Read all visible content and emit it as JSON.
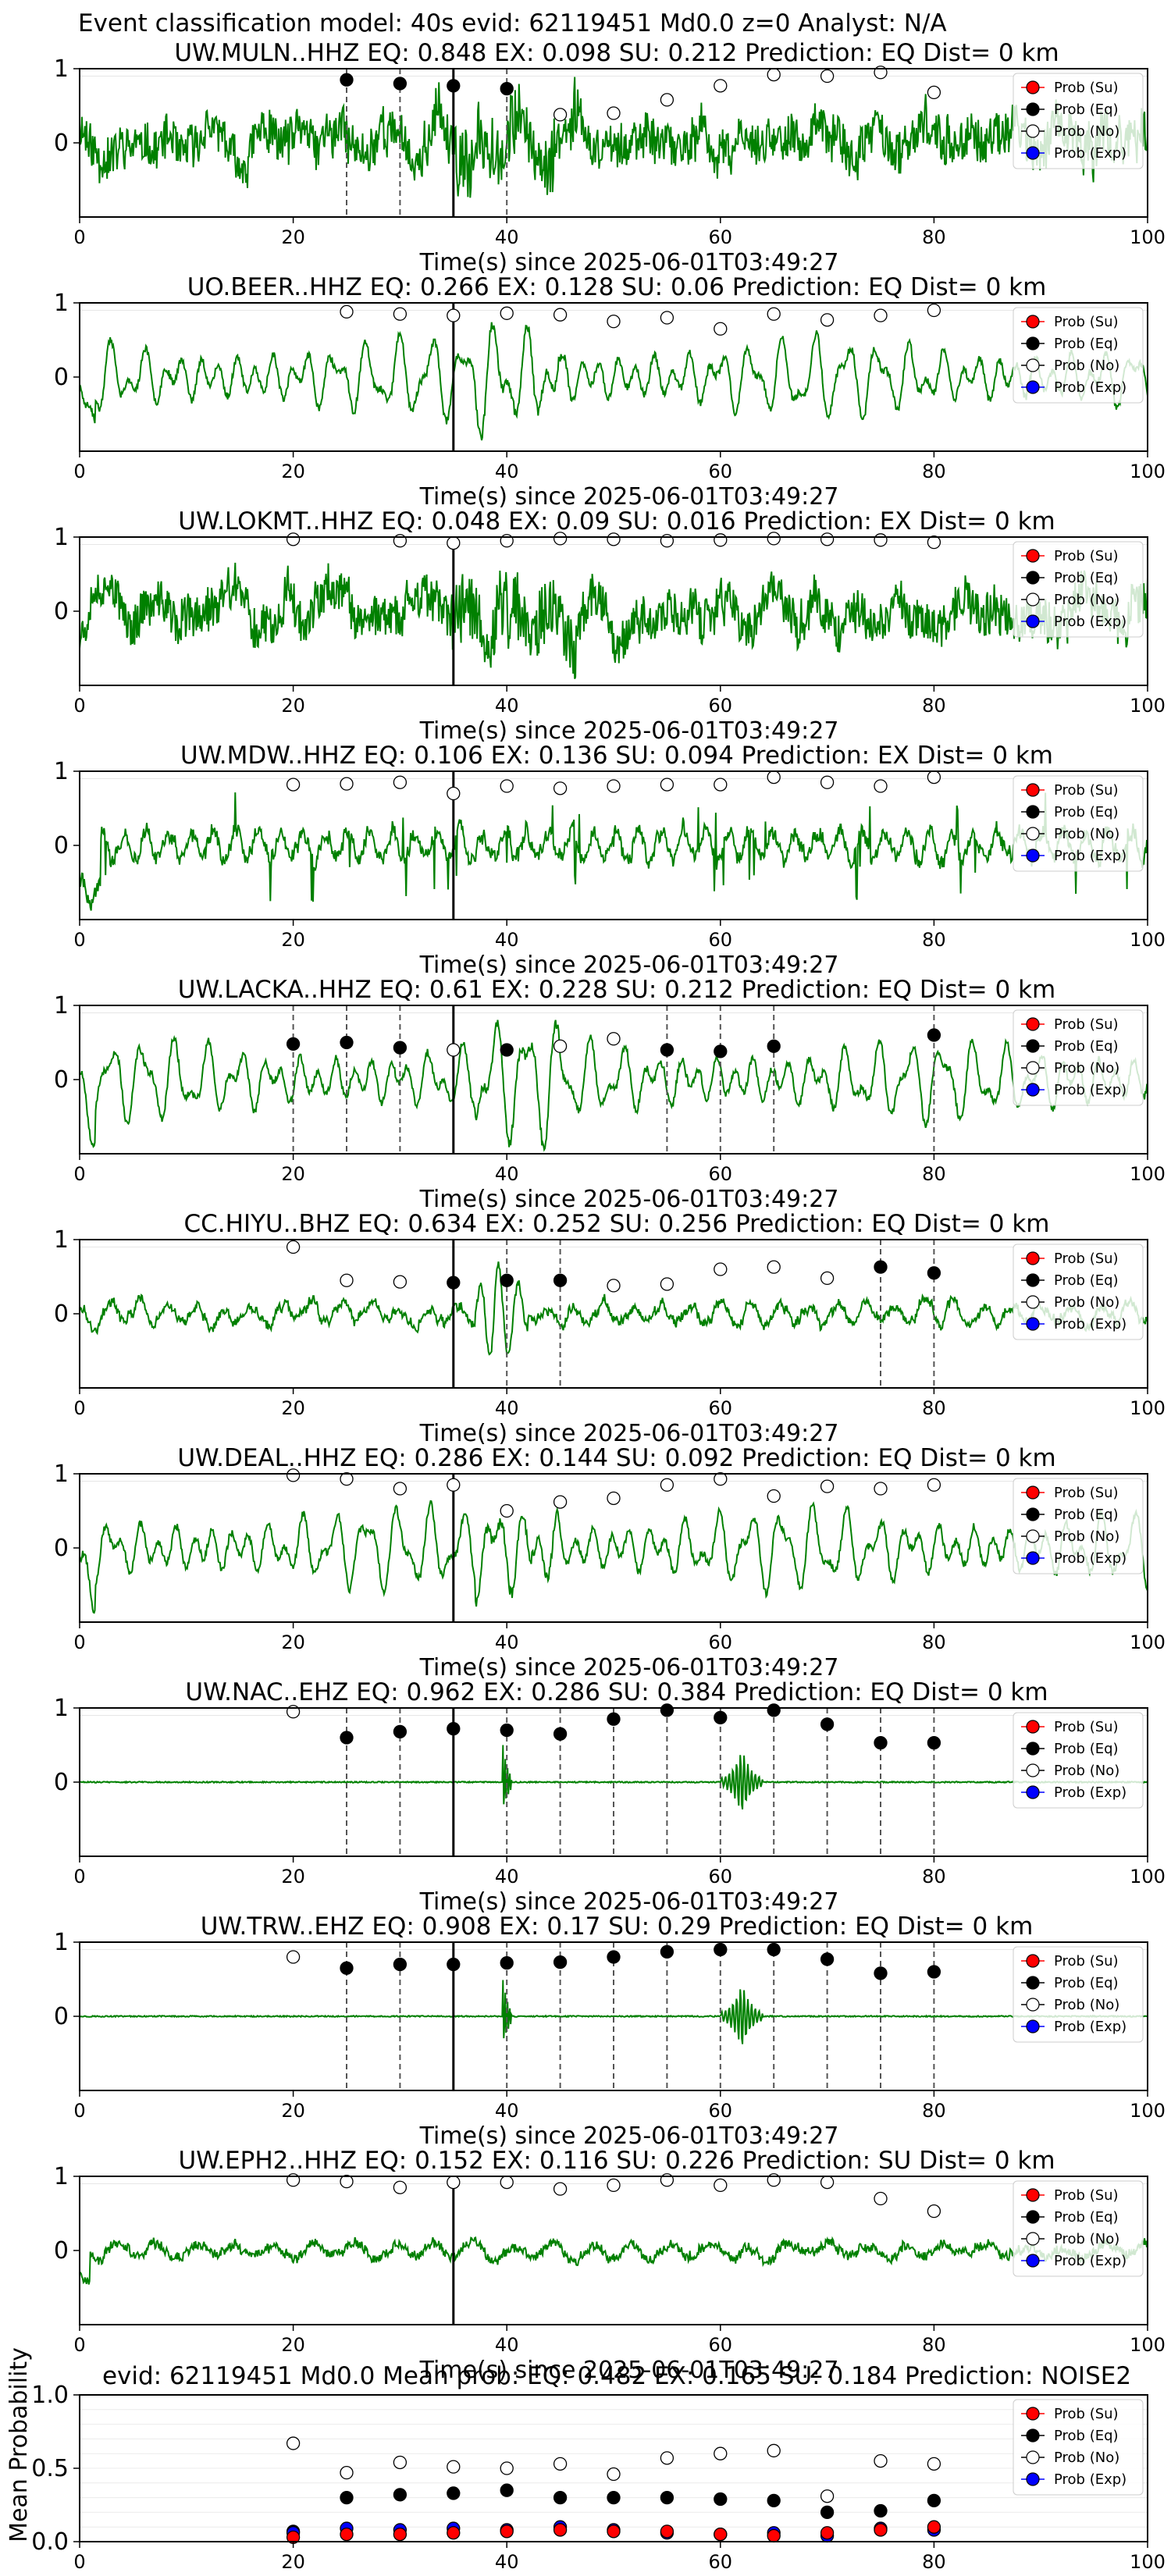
{
  "figure": {
    "suptitle": "Event classification model: 40s evid: 62119451 Md0.0 z=0 Analyst: N/A",
    "x_label": "Time(s) since 2025-06-01T03:49:27",
    "legend": [
      "Prob (Su)",
      "Prob (Eq)",
      "Prob (No)",
      "Prob (Exp)"
    ],
    "colors": {
      "waveform": "#008000",
      "su": "#ff0000",
      "eq": "#000000",
      "no": "#ffffff",
      "exp": "#0000ff",
      "pick_line": "#555555",
      "origin_line": "#000000"
    }
  },
  "chart_data": [
    {
      "type": "line",
      "title": "UW.MULN..HHZ   EQ: 0.848  EX: 0.098  SU: 0.212   Prediction: EQ    Dist= 0 km",
      "xlim": [
        0,
        100
      ],
      "xticks": [
        0,
        20,
        40,
        60,
        80,
        100
      ],
      "yticks": [
        0,
        1
      ],
      "ylabel": "",
      "origin_time": 35,
      "picks": [
        25,
        30,
        40
      ],
      "wave_style": "dense",
      "wave_seed": 11,
      "probabilities": {
        "type": "scatter",
        "x": [
          25,
          30,
          35,
          40,
          45,
          50,
          55,
          60,
          65,
          70,
          75,
          80
        ],
        "eq": [
          0.85,
          0.8,
          0.77,
          0.73,
          0.38,
          0.4,
          0.58,
          0.77,
          0.92,
          0.9,
          0.95,
          0.68
        ],
        "filled": [
          true,
          true,
          true,
          true,
          false,
          false,
          false,
          false,
          false,
          false,
          false,
          false
        ]
      }
    },
    {
      "type": "line",
      "title": "UO.BEER..HHZ   EQ: 0.266  EX: 0.128  SU: 0.06   Prediction: EQ    Dist= 0 km",
      "xlim": [
        0,
        100
      ],
      "xticks": [
        0,
        20,
        40,
        60,
        80,
        100
      ],
      "yticks": [
        0,
        1
      ],
      "ylabel": "",
      "origin_time": 35,
      "picks": [],
      "wave_style": "smooth",
      "wave_seed": 23,
      "probabilities": {
        "type": "scatter",
        "x": [
          25,
          30,
          35,
          40,
          45,
          50,
          55,
          60,
          65,
          70,
          75,
          80
        ],
        "eq": [
          0.88,
          0.85,
          0.83,
          0.86,
          0.84,
          0.75,
          0.8,
          0.65,
          0.85,
          0.77,
          0.83,
          0.9
        ],
        "filled": [
          false,
          false,
          false,
          false,
          false,
          false,
          false,
          false,
          false,
          false,
          false,
          false
        ]
      }
    },
    {
      "type": "line",
      "title": "UW.LOKMT..HHZ   EQ: 0.048  EX: 0.09  SU: 0.016   Prediction: EX    Dist= 0 km",
      "xlim": [
        0,
        100
      ],
      "xticks": [
        0,
        20,
        40,
        60,
        80,
        100
      ],
      "yticks": [
        0,
        1
      ],
      "ylabel": "",
      "origin_time": 35,
      "picks": [],
      "wave_style": "dense",
      "wave_seed": 37,
      "probabilities": {
        "type": "scatter",
        "x": [
          20,
          30,
          35,
          40,
          45,
          50,
          55,
          60,
          65,
          70,
          75,
          80
        ],
        "eq": [
          0.97,
          0.95,
          0.92,
          0.95,
          0.98,
          0.97,
          0.95,
          0.96,
          0.98,
          0.97,
          0.96,
          0.93
        ],
        "filled": [
          false,
          false,
          false,
          false,
          false,
          false,
          false,
          false,
          false,
          false,
          false,
          false
        ]
      }
    },
    {
      "type": "line",
      "title": "UW.MDW..HHZ   EQ: 0.106  EX: 0.136  SU: 0.094   Prediction: EX    Dist= 0 km",
      "xlim": [
        0,
        100
      ],
      "xticks": [
        0,
        20,
        40,
        60,
        80,
        100
      ],
      "yticks": [
        0,
        1
      ],
      "ylabel": "",
      "origin_time": 35,
      "picks": [],
      "wave_style": "spiky",
      "wave_seed": 41,
      "probabilities": {
        "type": "scatter",
        "x": [
          20,
          25,
          30,
          35,
          40,
          45,
          50,
          55,
          60,
          65,
          70,
          75,
          80
        ],
        "eq": [
          0.82,
          0.83,
          0.85,
          0.7,
          0.8,
          0.77,
          0.8,
          0.82,
          0.82,
          0.92,
          0.85,
          0.8,
          0.92
        ],
        "filled": [
          false,
          false,
          false,
          false,
          false,
          false,
          false,
          false,
          false,
          false,
          false,
          false,
          false
        ]
      }
    },
    {
      "type": "line",
      "title": "UW.LACKA..HHZ   EQ: 0.61  EX: 0.228  SU: 0.212   Prediction: EQ    Dist= 0 km",
      "xlim": [
        0,
        100
      ],
      "xticks": [
        0,
        20,
        40,
        60,
        80,
        100
      ],
      "yticks": [
        0,
        1
      ],
      "ylabel": "",
      "origin_time": 35,
      "picks": [
        20,
        25,
        30,
        55,
        60,
        65,
        80
      ],
      "wave_style": "smooth",
      "wave_seed": 53,
      "probabilities": {
        "type": "scatter",
        "x": [
          20,
          25,
          30,
          35,
          40,
          45,
          50,
          55,
          60,
          65,
          80
        ],
        "eq": [
          0.48,
          0.5,
          0.43,
          0.4,
          0.4,
          0.45,
          0.55,
          0.4,
          0.38,
          0.45,
          0.6
        ],
        "filled": [
          true,
          true,
          true,
          false,
          true,
          false,
          false,
          true,
          true,
          true,
          true
        ]
      }
    },
    {
      "type": "line",
      "title": "CC.HIYU..BHZ   EQ: 0.634  EX: 0.252  SU: 0.256   Prediction: EQ    Dist= 0 km",
      "xlim": [
        0,
        100
      ],
      "xticks": [
        0,
        20,
        40,
        60,
        80,
        100
      ],
      "yticks": [
        0,
        1
      ],
      "ylabel": "",
      "origin_time": 35,
      "picks": [
        40,
        45,
        75,
        80
      ],
      "wave_style": "quiet_burst",
      "wave_seed": 67,
      "probabilities": {
        "type": "scatter",
        "x": [
          20,
          25,
          30,
          35,
          40,
          45,
          50,
          55,
          60,
          65,
          70,
          75,
          80
        ],
        "eq": [
          0.9,
          0.45,
          0.43,
          0.42,
          0.45,
          0.45,
          0.38,
          0.4,
          0.6,
          0.63,
          0.48,
          0.63,
          0.55
        ],
        "filled": [
          false,
          false,
          false,
          true,
          true,
          true,
          false,
          false,
          false,
          false,
          false,
          true,
          true
        ]
      }
    },
    {
      "type": "line",
      "title": "UW.DEAL..HHZ   EQ: 0.286  EX: 0.144  SU: 0.092   Prediction: EQ    Dist= 0 km",
      "xlim": [
        0,
        100
      ],
      "xticks": [
        0,
        20,
        40,
        60,
        80,
        100
      ],
      "yticks": [
        0,
        1
      ],
      "ylabel": "",
      "origin_time": 35,
      "picks": [],
      "wave_style": "smooth",
      "wave_seed": 79,
      "probabilities": {
        "type": "scatter",
        "x": [
          20,
          25,
          30,
          35,
          40,
          45,
          50,
          55,
          60,
          65,
          70,
          75,
          80
        ],
        "eq": [
          0.98,
          0.93,
          0.8,
          0.85,
          0.5,
          0.62,
          0.67,
          0.85,
          0.93,
          0.7,
          0.83,
          0.8,
          0.85
        ],
        "filled": [
          false,
          false,
          false,
          false,
          false,
          false,
          false,
          false,
          false,
          false,
          false,
          false,
          false
        ]
      }
    },
    {
      "type": "line",
      "title": "UW.NAC..EHZ   EQ: 0.962  EX: 0.286  SU: 0.384   Prediction: EQ    Dist= 0 km",
      "xlim": [
        0,
        100
      ],
      "xticks": [
        0,
        20,
        40,
        60,
        80,
        100
      ],
      "yticks": [
        0,
        1
      ],
      "ylabel": "",
      "origin_time": 35,
      "picks": [
        25,
        30,
        40,
        45,
        50,
        55,
        60,
        65,
        70,
        75,
        80
      ],
      "wave_style": "flat",
      "wave_seed": 83,
      "probabilities": {
        "type": "scatter",
        "x": [
          20,
          25,
          30,
          35,
          40,
          45,
          50,
          55,
          60,
          65,
          70,
          75,
          80
        ],
        "eq": [
          0.95,
          0.6,
          0.68,
          0.72,
          0.7,
          0.65,
          0.85,
          0.97,
          0.87,
          0.97,
          0.78,
          0.53,
          0.53
        ],
        "filled": [
          false,
          true,
          true,
          true,
          true,
          true,
          true,
          true,
          true,
          true,
          true,
          true,
          true
        ]
      }
    },
    {
      "type": "line",
      "title": "UW.TRW..EHZ   EQ: 0.908  EX: 0.17  SU: 0.29   Prediction: EQ    Dist= 0 km",
      "xlim": [
        0,
        100
      ],
      "xticks": [
        0,
        20,
        40,
        60,
        80,
        100
      ],
      "yticks": [
        0,
        1
      ],
      "ylabel": "",
      "origin_time": 35,
      "picks": [
        25,
        30,
        40,
        45,
        50,
        55,
        60,
        65,
        70,
        75,
        80
      ],
      "wave_style": "flat",
      "wave_seed": 97,
      "probabilities": {
        "type": "scatter",
        "x": [
          20,
          25,
          30,
          35,
          40,
          45,
          50,
          55,
          60,
          65,
          70,
          75,
          80
        ],
        "eq": [
          0.8,
          0.65,
          0.7,
          0.7,
          0.72,
          0.73,
          0.8,
          0.87,
          0.9,
          0.9,
          0.77,
          0.58,
          0.6
        ],
        "filled": [
          false,
          true,
          true,
          true,
          true,
          true,
          true,
          true,
          true,
          true,
          true,
          true,
          true
        ]
      }
    },
    {
      "type": "line",
      "title": "UW.EPH2..HHZ   EQ: 0.152  EX: 0.116  SU: 0.226   Prediction: SU    Dist= 0 km",
      "xlim": [
        0,
        100
      ],
      "xticks": [
        0,
        20,
        40,
        60,
        80,
        100
      ],
      "yticks": [
        0,
        1
      ],
      "ylabel": "",
      "origin_time": 35,
      "picks": [],
      "wave_style": "noise",
      "wave_seed": 101,
      "probabilities": {
        "type": "scatter",
        "x": [
          20,
          25,
          30,
          35,
          40,
          45,
          50,
          55,
          60,
          65,
          70,
          75,
          80
        ],
        "eq": [
          0.95,
          0.93,
          0.85,
          0.92,
          0.92,
          0.83,
          0.88,
          0.95,
          0.88,
          0.95,
          0.92,
          0.7,
          0.53
        ],
        "filled": [
          false,
          false,
          false,
          false,
          false,
          false,
          false,
          false,
          false,
          false,
          false,
          false,
          false
        ]
      }
    },
    {
      "type": "scatter",
      "title": "evid: 62119451  Md0.0   Mean prob:   EQ: 0.482  EX: 0.165  SU: 0.184   Prediction: NOISE2",
      "xlim": [
        0,
        100
      ],
      "ylim": [
        0,
        1
      ],
      "xticks": [
        0,
        20,
        40,
        60,
        80,
        100
      ],
      "yticks": [
        0,
        0.5,
        1
      ],
      "ytick_labels": [
        "0.0",
        "0.5",
        "1.0"
      ],
      "ylabel": "Mean Probability",
      "x": [
        20,
        25,
        30,
        35,
        40,
        45,
        50,
        55,
        60,
        65,
        70,
        75,
        80
      ],
      "series": [
        {
          "name": "Prob (Su)",
          "values": [
            0.03,
            0.05,
            0.05,
            0.06,
            0.07,
            0.08,
            0.07,
            0.07,
            0.05,
            0.04,
            0.06,
            0.08,
            0.1
          ]
        },
        {
          "name": "Prob (Eq)",
          "values": [
            0.07,
            0.3,
            0.32,
            0.33,
            0.35,
            0.3,
            0.3,
            0.3,
            0.29,
            0.28,
            0.2,
            0.21,
            0.28
          ]
        },
        {
          "name": "Prob (No)",
          "values": [
            0.67,
            0.47,
            0.54,
            0.51,
            0.5,
            0.53,
            0.46,
            0.57,
            0.6,
            0.62,
            0.31,
            0.55,
            0.53
          ]
        },
        {
          "name": "Prob (Exp)",
          "values": [
            0.06,
            0.09,
            0.08,
            0.09,
            0.08,
            0.1,
            0.08,
            0.06,
            0.05,
            0.06,
            0.04,
            0.09,
            0.08
          ]
        }
      ]
    }
  ]
}
